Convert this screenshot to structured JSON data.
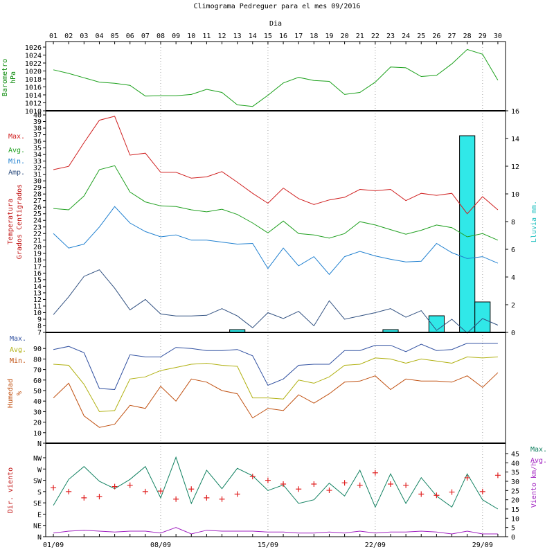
{
  "title": "Climograma Pedreguer para el mes 09/2016",
  "day_axis_label": "Dia",
  "days": [
    "01",
    "02",
    "03",
    "04",
    "05",
    "06",
    "07",
    "08",
    "09",
    "10",
    "11",
    "12",
    "13",
    "14",
    "15",
    "16",
    "17",
    "18",
    "19",
    "20",
    "21",
    "22",
    "23",
    "24",
    "25",
    "26",
    "27",
    "28",
    "29",
    "30"
  ],
  "date_ticks": [
    "01/09",
    "08/09",
    "15/09",
    "22/09",
    "29/09"
  ],
  "colors": {
    "background": "#ffffff",
    "frame": "#000000",
    "grid": "#a0a0a0",
    "pressure": "#1aa01a",
    "temp_max": "#d02020",
    "temp_avg": "#20a020",
    "temp_min": "#2080d0",
    "temp_amp": "#305080",
    "rain_fill": "#30e8e8",
    "hum_max": "#3050a0",
    "hum_avg": "#b0b010",
    "hum_min": "#c05010",
    "wind_dir": "#e02020",
    "wind_max": "#108060",
    "wind_avg": "#a020c0",
    "left_label_red": "#c01010",
    "left_label_green": "#0a8a0a",
    "rain_label": "#20c0c0",
    "wind_label_red": "#c01010",
    "wind_label_purple": "#a020c0",
    "wind_label_teal": "#108060"
  },
  "chart_data": [
    {
      "type": "line",
      "panel": "barometer",
      "ylabel": [
        "Barometro",
        "hPa"
      ],
      "ylim": [
        1010,
        1026
      ],
      "yticks": [
        1010,
        1012,
        1014,
        1016,
        1018,
        1020,
        1022,
        1024,
        1026
      ],
      "series": [
        {
          "values": [
            1020.3,
            1019.4,
            1018.3,
            1017.2,
            1016.9,
            1016.4,
            1013.7,
            1013.8,
            1013.8,
            1014.1,
            1015.4,
            1014.6,
            1011.5,
            1011.1,
            1013.9,
            1017.0,
            1018.4,
            1017.6,
            1017.4,
            1014.1,
            1014.6,
            1017.2,
            1021.0,
            1020.8,
            1018.6,
            1018.9,
            1021.8,
            1025.4,
            1024.2,
            1017.7
          ]
        }
      ]
    },
    {
      "type": "line",
      "panel": "temperature",
      "ylabel": [
        "Temperatura",
        "Grados Centigrados"
      ],
      "ylim": [
        7,
        40
      ],
      "yticks": [
        7,
        8,
        9,
        10,
        11,
        12,
        13,
        14,
        15,
        16,
        17,
        18,
        19,
        20,
        21,
        22,
        23,
        24,
        25,
        26,
        27,
        28,
        29,
        30,
        31,
        32,
        33,
        34,
        35,
        36,
        37,
        38,
        39,
        40
      ],
      "legend": [
        "Max.",
        "Avg.",
        "Min.",
        "Amp."
      ],
      "series": [
        {
          "name": "Max.",
          "values": [
            31.7,
            32.2,
            35.8,
            39.2,
            39.8,
            33.9,
            34.2,
            31.3,
            31.3,
            30.4,
            30.6,
            31.4,
            29.8,
            28.1,
            26.6,
            28.9,
            27.3,
            26.4,
            27.1,
            27.5,
            28.7,
            28.5,
            28.7,
            27.0,
            28.1,
            27.8,
            28.1,
            25.0,
            27.6,
            25.6
          ]
        },
        {
          "name": "Avg.",
          "values": [
            25.8,
            25.6,
            27.7,
            31.7,
            32.3,
            28.3,
            26.8,
            26.2,
            26.1,
            25.6,
            25.3,
            25.7,
            24.9,
            23.6,
            22.1,
            23.9,
            22.0,
            21.8,
            21.3,
            22.0,
            23.8,
            23.3,
            22.6,
            21.9,
            22.5,
            23.3,
            22.9,
            21.5,
            22.0,
            21.0
          ]
        },
        {
          "name": "Min.",
          "values": [
            22.0,
            19.8,
            20.4,
            23.0,
            26.1,
            23.6,
            22.3,
            21.5,
            21.8,
            21.0,
            21.0,
            20.7,
            20.4,
            20.5,
            16.7,
            19.8,
            17.1,
            18.5,
            15.8,
            18.5,
            19.3,
            18.6,
            18.1,
            17.7,
            17.8,
            20.5,
            19.1,
            18.2,
            18.5,
            17.5
          ]
        },
        {
          "name": "Amp.",
          "values": [
            9.7,
            12.4,
            15.5,
            16.5,
            13.7,
            10.4,
            12.0,
            9.8,
            9.5,
            9.5,
            9.6,
            10.6,
            9.5,
            7.7,
            10.0,
            9.1,
            10.2,
            8.0,
            11.8,
            9.0,
            9.5,
            10.0,
            10.6,
            9.3,
            10.3,
            7.3,
            9.0,
            6.9,
            9.1,
            8.1
          ]
        }
      ]
    },
    {
      "type": "bar",
      "panel": "rain",
      "ylabel": "Lluvia mm.",
      "ylim": [
        0,
        16
      ],
      "yticks": [
        0,
        2,
        4,
        6,
        8,
        10,
        12,
        14,
        16
      ],
      "values": [
        0,
        0,
        0,
        0,
        0,
        0,
        0,
        0,
        0,
        0,
        0,
        0,
        0.2,
        0,
        0,
        0,
        0,
        0,
        0,
        0,
        0,
        0,
        0.2,
        0,
        0,
        1.2,
        0,
        14.2,
        2.2,
        0
      ]
    },
    {
      "type": "line",
      "panel": "humidity",
      "ylabel": [
        "Humedad",
        "%"
      ],
      "ylim": [
        0,
        100
      ],
      "yticks": [
        "N",
        10,
        20,
        30,
        40,
        50,
        60,
        70,
        80,
        90
      ],
      "legend": [
        "Max.",
        "Avg.",
        "Min."
      ],
      "series": [
        {
          "name": "Max.",
          "values": [
            89,
            92,
            86,
            52,
            51,
            84,
            82,
            82,
            91,
            90,
            88,
            88,
            89,
            83,
            55,
            61,
            74,
            75,
            75,
            88,
            88,
            93,
            93,
            87,
            94,
            88,
            89,
            95,
            95,
            95
          ]
        },
        {
          "name": "Avg.",
          "values": [
            75,
            74,
            56,
            30,
            31,
            61,
            63,
            69,
            72,
            75,
            76,
            74,
            73,
            43,
            43,
            42,
            60,
            57,
            63,
            74,
            75,
            81,
            80,
            76,
            80,
            78,
            76,
            82,
            81,
            82
          ]
        },
        {
          "name": "Min.",
          "values": [
            43,
            57,
            26,
            15,
            18,
            36,
            33,
            54,
            40,
            61,
            58,
            50,
            47,
            24,
            33,
            31,
            46,
            38,
            47,
            58,
            59,
            64,
            51,
            61,
            59,
            59,
            58,
            64,
            53,
            67
          ]
        }
      ]
    },
    {
      "type": "line",
      "panel": "wind",
      "ylabel_left": "Dir. viento",
      "ylabel_right": "Viento km/h",
      "direction_ticks": [
        "N",
        "NE",
        "E",
        "SE",
        "S",
        "SW",
        "W",
        "NW"
      ],
      "ylim_right": [
        0,
        45
      ],
      "yticks_right": [
        0,
        5,
        10,
        15,
        20,
        25,
        30,
        35,
        40,
        45
      ],
      "legend": [
        "Max.",
        "Avg."
      ],
      "series": [
        {
          "name": "Max.",
          "values": [
            17,
            31,
            38,
            30,
            26,
            31,
            38,
            21,
            43,
            18,
            36,
            26,
            37,
            33,
            25,
            28,
            18,
            20,
            29,
            22,
            36,
            16,
            34,
            18,
            32,
            22,
            16,
            34,
            20,
            15
          ]
        },
        {
          "name": "Avg.",
          "values": [
            2,
            3,
            3.5,
            3,
            2.5,
            3,
            3,
            2,
            5,
            1.5,
            3.5,
            3,
            3,
            3,
            2.5,
            2.5,
            2,
            2,
            2.5,
            2,
            3,
            2,
            2.5,
            2.5,
            3,
            2.5,
            1.5,
            3,
            1.5,
            1.5
          ]
        },
        {
          "name": "Dir.",
          "values": [
            195,
            180,
            155,
            160,
            200,
            205,
            180,
            182,
            150,
            190,
            155,
            150,
            170,
            240,
            225,
            210,
            190,
            210,
            185,
            215,
            205,
            255,
            210,
            205,
            170,
            165,
            178,
            235,
            180,
            245
          ]
        }
      ]
    }
  ]
}
